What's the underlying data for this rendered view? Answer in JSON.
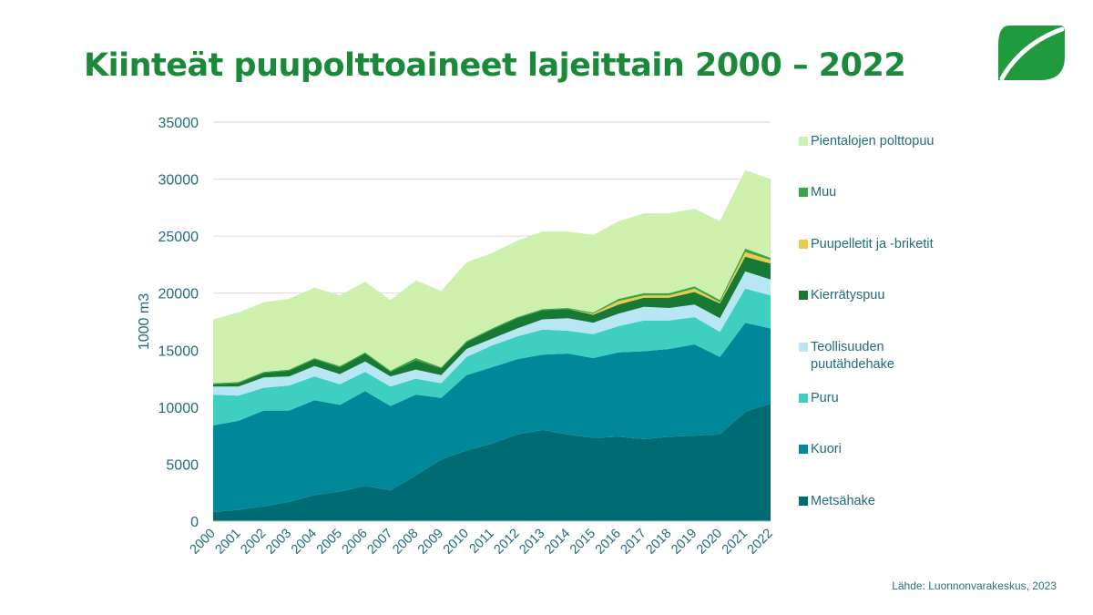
{
  "page": {
    "title": "Kiinteät puupolttoaineet lajeittain 2000 – 2022",
    "source": "Lähde: Luonnonvarakeskus, 2023",
    "title_color": "#1a8a3a",
    "logo_icon": "leaf-logo-icon"
  },
  "chart_data": {
    "type": "area",
    "stacked": true,
    "title": "Kiinteät puupolttoaineet lajeittain 2000 – 2022",
    "xlabel": "",
    "ylabel": "1000 m3",
    "ylim": [
      0,
      35000
    ],
    "yticks": [
      0,
      5000,
      10000,
      15000,
      20000,
      25000,
      30000,
      35000
    ],
    "grid": true,
    "legend_position": "right",
    "x": [
      "2000",
      "2001",
      "2002",
      "2003",
      "2004",
      "2005",
      "2006",
      "2007",
      "2008",
      "2009",
      "2010",
      "2011",
      "2012",
      "2013",
      "2014",
      "2015",
      "2016",
      "2017",
      "2018",
      "2019",
      "2020",
      "2021",
      "2022"
    ],
    "series": [
      {
        "name": "Metsähake",
        "color": "#006b73",
        "values": [
          800,
          1000,
          1300,
          1700,
          2300,
          2600,
          3100,
          2700,
          4000,
          5400,
          6200,
          6800,
          7600,
          8000,
          7600,
          7300,
          7400,
          7200,
          7400,
          7500,
          7600,
          9600,
          10300
        ]
      },
      {
        "name": "Kuori",
        "color": "#00889a",
        "values": [
          7600,
          7800,
          8400,
          8000,
          8300,
          7600,
          8300,
          7400,
          7100,
          5400,
          6600,
          6700,
          6600,
          6600,
          7100,
          7000,
          7400,
          7700,
          7700,
          8000,
          6800,
          7800,
          6600
        ]
      },
      {
        "name": "Puru",
        "color": "#3dcfbf",
        "values": [
          2700,
          2200,
          2000,
          2200,
          2100,
          1800,
          1700,
          1700,
          1400,
          1300,
          1600,
          1900,
          2000,
          2200,
          2000,
          2100,
          2300,
          2700,
          2500,
          2400,
          2200,
          3000,
          2900
        ]
      },
      {
        "name": "Teollisuuden puutähdehake",
        "color": "#b8e6f2",
        "values": [
          700,
          800,
          900,
          800,
          900,
          900,
          900,
          900,
          800,
          700,
          700,
          600,
          700,
          900,
          1100,
          1000,
          1100,
          1200,
          1100,
          1100,
          1200,
          1500,
          1400
        ]
      },
      {
        "name": "Kierrätyspuu",
        "color": "#167a35",
        "values": [
          200,
          300,
          400,
          500,
          600,
          600,
          700,
          400,
          800,
          600,
          600,
          800,
          900,
          800,
          800,
          700,
          800,
          800,
          900,
          1100,
          1300,
          1300,
          1400
        ]
      },
      {
        "name": "Puupelletit ja -briketit",
        "color": "#f0c94c",
        "values": [
          0,
          0,
          0,
          0,
          0,
          0,
          0,
          0,
          0,
          0,
          0,
          0,
          0,
          0,
          0,
          100,
          300,
          200,
          200,
          300,
          100,
          400,
          300
        ]
      },
      {
        "name": "Muu",
        "color": "#3aa547",
        "values": [
          100,
          100,
          100,
          100,
          100,
          100,
          100,
          100,
          200,
          100,
          100,
          100,
          100,
          100,
          100,
          100,
          200,
          200,
          200,
          200,
          200,
          300,
          200
        ]
      },
      {
        "name": "Pientalojen polttopuu",
        "color": "#cdf0ad",
        "values": [
          5600,
          6100,
          6100,
          6200,
          6200,
          6200,
          6200,
          6200,
          6800,
          6700,
          6900,
          6600,
          6700,
          6800,
          6700,
          6800,
          6800,
          7000,
          7000,
          6800,
          6900,
          6900,
          6900
        ]
      }
    ]
  }
}
